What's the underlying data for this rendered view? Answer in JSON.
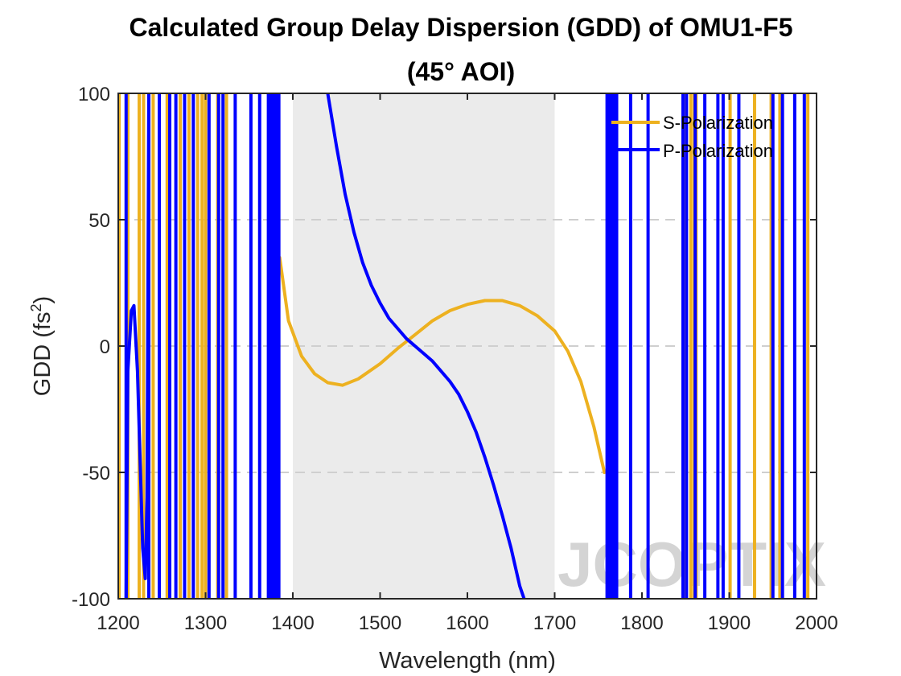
{
  "chart_data": {
    "type": "line",
    "title_lines": [
      "Calculated Group Delay Dispersion (GDD) of OMU1-F5",
      "(45° AOI)"
    ],
    "xlabel": "Wavelength (nm)",
    "ylabel_main": "GDD (fs",
    "ylabel_sup": "2",
    "ylabel_close": ")",
    "xlim": [
      1200,
      2000
    ],
    "ylim": [
      -100,
      100
    ],
    "xticks": [
      1200,
      1300,
      1400,
      1500,
      1600,
      1700,
      1800,
      1900,
      2000
    ],
    "yticks": [
      -100,
      -50,
      0,
      50,
      100
    ],
    "grid": "dashed horizontal at -50, 0, 50",
    "shaded_band": {
      "x_start": 1400,
      "x_end": 1700,
      "color": "#ebebeb"
    },
    "legend_position": "top-right",
    "watermark": "JCOPTIX",
    "series": [
      {
        "name": "S-Polarization",
        "color": "#EDB120",
        "oscillation_lines_x": [
          1201,
          1211,
          1224,
          1229,
          1240,
          1256,
          1271,
          1281,
          1291,
          1296,
          1300,
          1314,
          1324,
          1850,
          1856,
          1860,
          1862,
          1901,
          1929,
          1948,
          1958,
          1990
        ],
        "smooth_segment": [
          [
            1385,
            35
          ],
          [
            1395,
            10
          ],
          [
            1410,
            -4
          ],
          [
            1425,
            -11
          ],
          [
            1440,
            -14.5
          ],
          [
            1457,
            -15.5
          ],
          [
            1475,
            -13
          ],
          [
            1500,
            -7
          ],
          [
            1520,
            -1
          ],
          [
            1540,
            4.5
          ],
          [
            1560,
            10
          ],
          [
            1580,
            14
          ],
          [
            1600,
            16.5
          ],
          [
            1620,
            18
          ],
          [
            1640,
            18
          ],
          [
            1660,
            16
          ],
          [
            1680,
            12
          ],
          [
            1700,
            6
          ],
          [
            1715,
            -2
          ],
          [
            1730,
            -14
          ],
          [
            1745,
            -32
          ],
          [
            1757,
            -50
          ]
        ]
      },
      {
        "name": "P-Polarization",
        "color": "#0000FF",
        "oscillation_lines_x": [
          1209,
          1235,
          1247,
          1259,
          1266,
          1276,
          1286,
          1304,
          1315,
          1320,
          1334,
          1352,
          1362,
          1372,
          1374,
          1377,
          1379,
          1381,
          1384,
          1760,
          1763,
          1766,
          1768,
          1771,
          1787,
          1807,
          1847,
          1851,
          1861,
          1872,
          1887,
          1893,
          1911,
          1950,
          1961,
          1975,
          1986
        ],
        "smooth_segment": [
          [
            1440,
            100
          ],
          [
            1450,
            79
          ],
          [
            1460,
            60
          ],
          [
            1470,
            45
          ],
          [
            1480,
            33
          ],
          [
            1490,
            24
          ],
          [
            1500,
            17
          ],
          [
            1510,
            11
          ],
          [
            1520,
            7
          ],
          [
            1530,
            3
          ],
          [
            1540,
            0
          ],
          [
            1550,
            -3
          ],
          [
            1560,
            -6
          ],
          [
            1570,
            -10
          ],
          [
            1580,
            -14
          ],
          [
            1590,
            -19
          ],
          [
            1600,
            -26
          ],
          [
            1610,
            -34
          ],
          [
            1620,
            -44
          ],
          [
            1630,
            -55
          ],
          [
            1640,
            -67
          ],
          [
            1650,
            -80
          ],
          [
            1660,
            -95
          ],
          [
            1665,
            -100
          ]
        ],
        "low_lobe": [
          [
            1209,
            -100
          ],
          [
            1211,
            -10
          ],
          [
            1215,
            14
          ],
          [
            1218,
            16
          ],
          [
            1222,
            -10
          ],
          [
            1228,
            -80
          ],
          [
            1231,
            -92
          ],
          [
            1233,
            -60
          ],
          [
            1235,
            100
          ]
        ]
      }
    ]
  }
}
